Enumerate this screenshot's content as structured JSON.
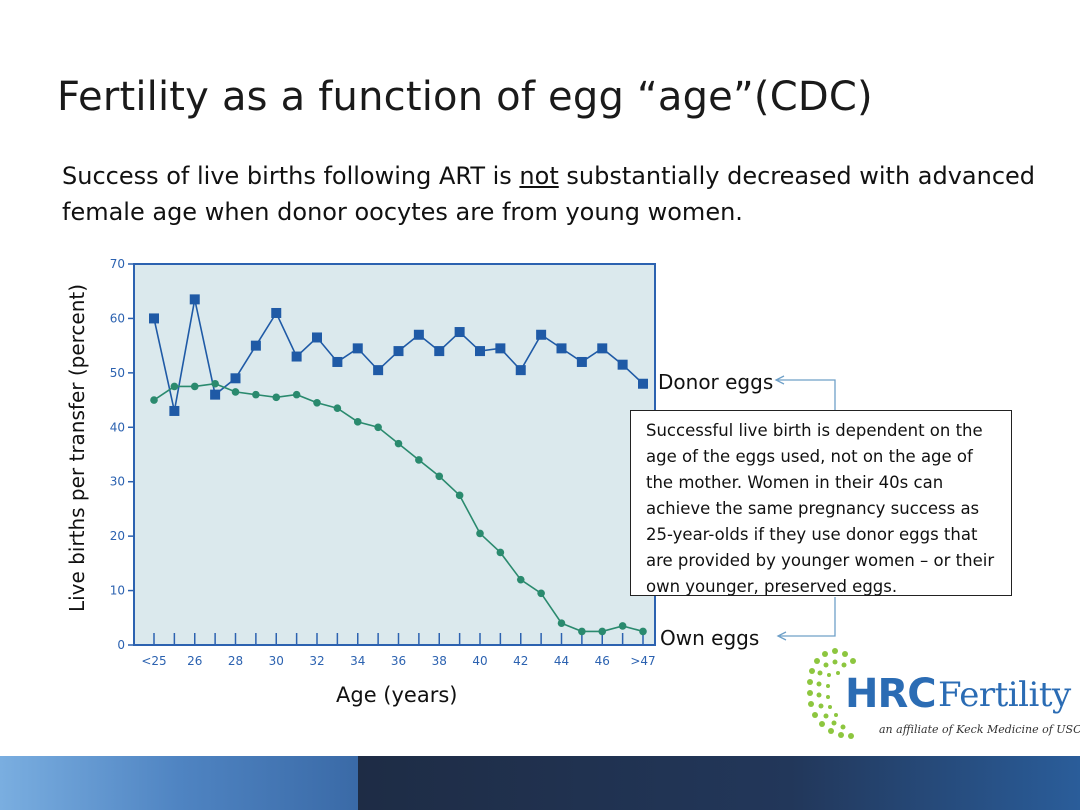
{
  "slide": {
    "title": "Fertility as a function of egg “age”(CDC)",
    "subtitle_pre": "Success of live births following ART is ",
    "subtitle_emph": "not",
    "subtitle_post": " substantially decreased with advanced female age when donor oocytes are from young women.",
    "callout": "Successful live birth is dependent on the age of the eggs used, not on the age of the mother.  Women in their 40s can achieve the same pregnancy success as 25-year-olds if they use donor eggs that are provided by younger women – or their own younger, preserved eggs."
  },
  "chart_data": {
    "type": "line",
    "ylabel": "Live births per transfer (percent)",
    "xlabel": "Age (years)",
    "ylim": [
      0,
      70
    ],
    "yticks": [
      "0",
      "10",
      "20",
      "30",
      "40",
      "50",
      "60",
      "70"
    ],
    "xtick_labels": [
      "<25",
      "26",
      "28",
      "30",
      "32",
      "34",
      "36",
      "38",
      "40",
      "42",
      "44",
      "46",
      ">47"
    ],
    "categories": [
      "<25",
      "25",
      "26",
      "27",
      "28",
      "29",
      "30",
      "31",
      "32",
      "33",
      "34",
      "35",
      "36",
      "37",
      "38",
      "39",
      "40",
      "41",
      "42",
      "43",
      "44",
      "45",
      "46",
      "47",
      ">47"
    ],
    "series": [
      {
        "name": "Donor eggs",
        "color": "#1f5aa6",
        "marker": "square",
        "values": [
          60,
          43,
          63.5,
          46,
          49,
          55,
          61,
          53,
          56.5,
          52,
          54.5,
          50.5,
          54,
          57,
          54,
          57.5,
          54,
          54.5,
          50.5,
          57,
          54.5,
          52,
          54.5,
          51.5,
          48
        ]
      },
      {
        "name": "Own eggs",
        "color": "#2a8a6e",
        "marker": "circle",
        "values": [
          45,
          47.5,
          47.5,
          48,
          46.5,
          46,
          45.5,
          46,
          44.5,
          43.5,
          41,
          40,
          37,
          34,
          31,
          27.5,
          20.5,
          17,
          12,
          9.5,
          4,
          2.5,
          2.5,
          3.5,
          2.5
        ]
      }
    ]
  },
  "logo": {
    "hrc": "HRC",
    "fertility": "Fertility",
    "affiliate": "an affiliate of Keck Medicine of USC"
  },
  "colors": {
    "plot_bg": "#dbe9ed",
    "axis": "#2c62b0",
    "brand_blue": "#2b6cb4",
    "logo_green": "#8dc63f"
  }
}
